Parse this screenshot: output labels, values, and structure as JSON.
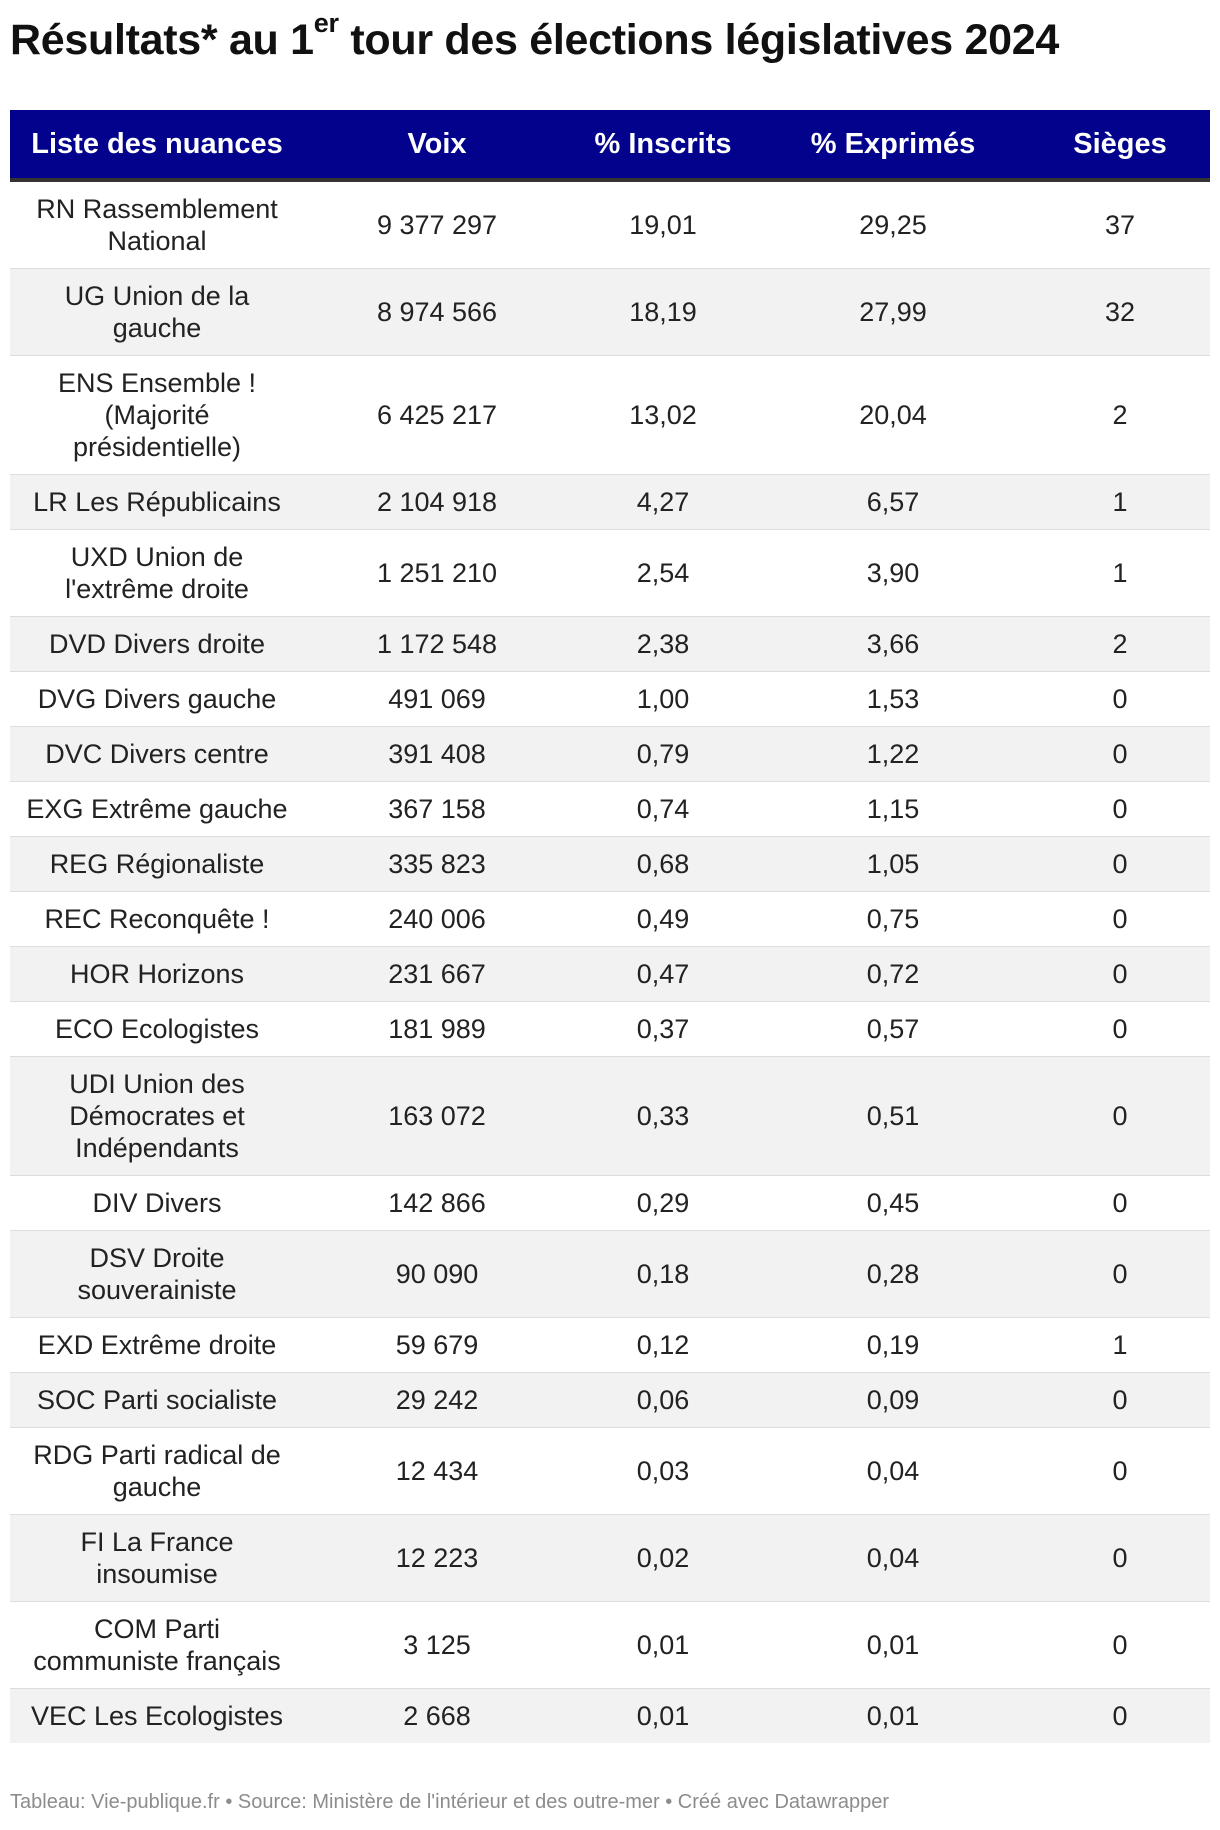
{
  "title": {
    "before": "Résultats* au 1",
    "sup": "er",
    "after": " tour des élections législatives 2024"
  },
  "table": {
    "columns": [
      "Liste des nuances",
      "Voix",
      "% Inscrits",
      "% Exprimés",
      "Sièges"
    ],
    "rows": [
      [
        "RN Rassemblement National",
        "9 377 297",
        "19,01",
        "29,25",
        "37"
      ],
      [
        "UG Union de la gauche",
        "8 974 566",
        "18,19",
        "27,99",
        "32"
      ],
      [
        "ENS Ensemble ! (Majorité présidentielle)",
        "6 425 217",
        "13,02",
        "20,04",
        "2"
      ],
      [
        "LR Les Républicains",
        "2 104 918",
        "4,27",
        "6,57",
        "1"
      ],
      [
        "UXD Union de l'extrême droite",
        "1 251 210",
        "2,54",
        "3,90",
        "1"
      ],
      [
        "DVD Divers droite",
        "1 172 548",
        "2,38",
        "3,66",
        "2"
      ],
      [
        "DVG Divers gauche",
        "491 069",
        "1,00",
        "1,53",
        "0"
      ],
      [
        "DVC Divers centre",
        "391 408",
        "0,79",
        "1,22",
        "0"
      ],
      [
        "EXG Extrême gauche",
        "367 158",
        "0,74",
        "1,15",
        "0"
      ],
      [
        "REG Régionaliste",
        "335 823",
        "0,68",
        "1,05",
        "0"
      ],
      [
        "REC Reconquête !",
        "240 006",
        "0,49",
        "0,75",
        "0"
      ],
      [
        "HOR Horizons",
        "231 667",
        "0,47",
        "0,72",
        "0"
      ],
      [
        "ECO Ecologistes",
        "181 989",
        "0,37",
        "0,57",
        "0"
      ],
      [
        "UDI Union des Démocrates et Indépendants",
        "163 072",
        "0,33",
        "0,51",
        "0"
      ],
      [
        "DIV Divers",
        "142 866",
        "0,29",
        "0,45",
        "0"
      ],
      [
        "DSV Droite souverainiste",
        "90 090",
        "0,18",
        "0,28",
        "0"
      ],
      [
        "EXD Extrême droite",
        "59 679",
        "0,12",
        "0,19",
        "1"
      ],
      [
        "SOC Parti socialiste",
        "29 242",
        "0,06",
        "0,09",
        "0"
      ],
      [
        "RDG Parti radical de gauche",
        "12 434",
        "0,03",
        "0,04",
        "0"
      ],
      [
        "FI La France insoumise",
        "12 223",
        "0,02",
        "0,04",
        "0"
      ],
      [
        "COM Parti communiste français",
        "3 125",
        "0,01",
        "0,01",
        "0"
      ],
      [
        "VEC Les Ecologistes",
        "2 668",
        "0,01",
        "0,01",
        "0"
      ]
    ]
  },
  "footer": "Tableau: Vie-publique.fr • Source: Ministère de l'intérieur et des outre-mer • Créé avec Datawrapper",
  "colors": {
    "header_bg": "#02028c",
    "header_text": "#ffffff",
    "stripe": "#f2f2f2"
  }
}
